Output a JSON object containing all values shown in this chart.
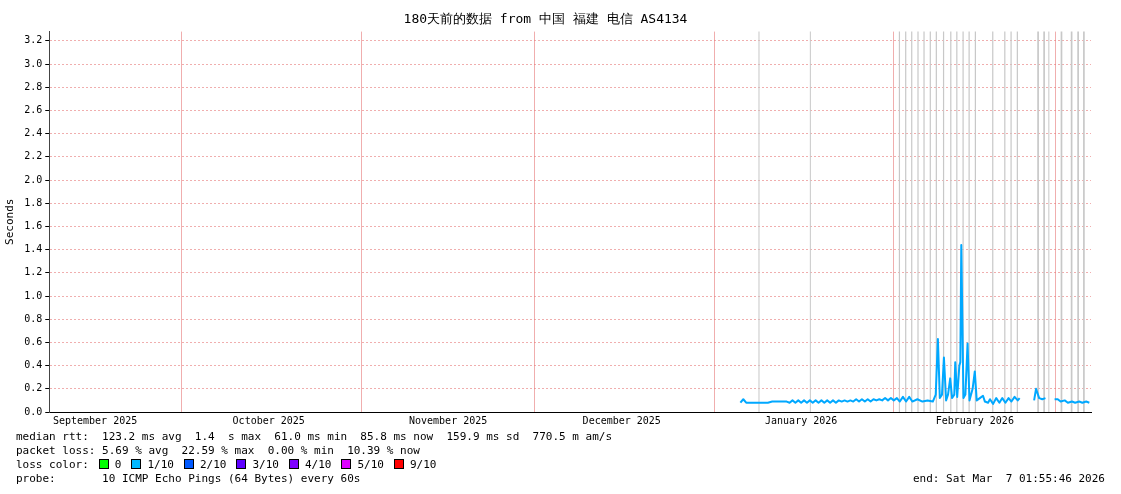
{
  "chart_data": {
    "type": "line",
    "title": "180天前的数据 from 中国 福建 电信 AS4134",
    "ylabel": "Seconds",
    "xlim": [
      "2025-09-08T01:55",
      "2026-03-07T01:55"
    ],
    "xticks": [
      {
        "value": "2025-09-16",
        "label": "September 2025"
      },
      {
        "value": "2025-10-01",
        "label": null
      },
      {
        "value": "2025-10-16",
        "label": "October 2025"
      },
      {
        "value": "2025-11-01",
        "label": null
      },
      {
        "value": "2025-11-16",
        "label": "November 2025"
      },
      {
        "value": "2025-12-01",
        "label": null
      },
      {
        "value": "2025-12-16",
        "label": "December 2025"
      },
      {
        "value": "2026-01-01",
        "label": null
      },
      {
        "value": "2026-01-16",
        "label": "January 2026"
      },
      {
        "value": "2026-02-01",
        "label": null
      },
      {
        "value": "2026-02-15",
        "label": "February 2026"
      },
      {
        "value": "2026-03-01",
        "label": null
      }
    ],
    "ylim": [
      0,
      3.28
    ],
    "yticks": [
      {
        "value": 0,
        "label": "0.0"
      },
      0.2,
      0.4,
      0.6,
      0.8,
      {
        "value": 1,
        "label": "1.0"
      },
      1.2,
      1.4,
      1.6,
      1.8,
      {
        "value": 2,
        "label": "2.0"
      },
      2.2,
      2.4,
      2.6,
      2.8,
      {
        "value": 3,
        "label": "3.0"
      },
      3.2
    ],
    "grid": true,
    "legend": false,
    "series": [
      {
        "color": "#00a8ff",
        "x": [
          "2026-01-05T12:00",
          "2026-01-06T00:00",
          "2026-01-06T12:00",
          "2026-01-07T06:00",
          "2026-01-08T00:00",
          "2026-01-08T18:00",
          "2026-01-09T12:00",
          "2026-01-10T06:00",
          "2026-01-11T00:00",
          "2026-01-12T00:00",
          "2026-01-13T12:00",
          "2026-01-14T00:00",
          "2026-01-14T12:00",
          "2026-01-15T00:00",
          "2026-01-15T12:00",
          "2026-01-16T00:00",
          "2026-01-16T12:00",
          "2026-01-17T00:00",
          "2026-01-17T12:00",
          "2026-01-18T00:00",
          "2026-01-18T12:00",
          "2026-01-19T00:00",
          "2026-01-19T12:00",
          "2026-01-20T00:00",
          "2026-01-20T12:00",
          "2026-01-21T00:00",
          "2026-01-21T12:00",
          "2026-01-22T00:00",
          "2026-01-22T12:00",
          "2026-01-23T00:00",
          "2026-01-23T12:00",
          "2026-01-24T00:00",
          "2026-01-24T12:00",
          "2026-01-25T00:00",
          "2026-01-25T12:00",
          "2026-01-26T00:00",
          "2026-01-26T12:00",
          "2026-01-27T00:00",
          "2026-01-27T12:00",
          "2026-01-28T00:00",
          "2026-01-28T12:00",
          "2026-01-29T00:00",
          "2026-01-29T12:00",
          "2026-01-30T00:00",
          "2026-01-30T12:00",
          "2026-01-31T00:00",
          "2026-01-31T12:00",
          "2026-02-01T00:00",
          "2026-02-01T13:00",
          "2026-02-02T01:00",
          "2026-02-02T14:00",
          "2026-02-03T03:00",
          "2026-02-03T16:00",
          "2026-02-04T05:00",
          "2026-02-05T02:00",
          "2026-02-05T23:00",
          "2026-02-06T20:00",
          "2026-02-07T18:00",
          "2026-02-08T06:00",
          "2026-02-08T15:00",
          "2026-02-08T23:00",
          "2026-02-09T08:00",
          "2026-02-09T16:00",
          "2026-02-10T01:00",
          "2026-02-10T09:00",
          "2026-02-10T18:00",
          "2026-02-11T02:00",
          "2026-02-11T11:00",
          "2026-02-11T15:00",
          "2026-02-11T23:00",
          "2026-02-12T08:00",
          "2026-02-12T12:00",
          "2026-02-12T16:00",
          "2026-02-13T01:00",
          "2026-02-13T09:00",
          "2026-02-13T18:00",
          "2026-02-14T02:00",
          "2026-02-14T15:00",
          "2026-02-15T00:00",
          "2026-02-15T08:00",
          "2026-02-15T21:00",
          "2026-02-16T10:00",
          "2026-02-16T18:00",
          "2026-02-17T07:00",
          "2026-02-17T15:00",
          "2026-02-18T04:00",
          "2026-02-18T17:00",
          "2026-02-19T06:00",
          "2026-02-19T18:00",
          "2026-02-20T07:00",
          "2026-02-20T20:00",
          "2026-02-21T08:00",
          "2026-02-21T21:00",
          "2026-02-22T10:00",
          "2026-02-22T18:00",
          "2026-02-23T12:00",
          "2026-02-25T06:00",
          "2026-02-25T14:00",
          "2026-02-26T03:00",
          "2026-02-26T16:00",
          "2026-02-27T05:00",
          "2026-02-28T00:00",
          "2026-02-28T19:00",
          "2026-03-01T08:00",
          "2026-03-01T20:00",
          "2026-03-02T13:00",
          "2026-03-03T02:00",
          "2026-03-03T19:00",
          "2026-03-04T08:00",
          "2026-03-05T01:00",
          "2026-03-05T14:00",
          "2026-03-06T06:00",
          "2026-03-06T19:00"
        ],
        "values": [
          0.08,
          0.11,
          0.08,
          0.08,
          0.08,
          0.08,
          0.08,
          0.08,
          0.09,
          0.09,
          0.09,
          0.08,
          0.1,
          0.08,
          0.1,
          0.08,
          0.1,
          0.08,
          0.1,
          0.08,
          0.1,
          0.08,
          0.1,
          0.08,
          0.1,
          0.08,
          0.1,
          0.08,
          0.1,
          0.09,
          0.1,
          0.09,
          0.1,
          0.09,
          0.11,
          0.09,
          0.11,
          0.09,
          0.11,
          0.09,
          0.11,
          0.1,
          0.11,
          0.1,
          0.12,
          0.1,
          0.12,
          0.1,
          0.12,
          0.09,
          0.13,
          0.09,
          0.13,
          0.09,
          0.11,
          0.09,
          0.1,
          0.09,
          0.15,
          0.63,
          0.12,
          0.15,
          0.47,
          0.1,
          0.15,
          0.29,
          0.12,
          0.15,
          0.43,
          0.13,
          0.4,
          0.43,
          1.44,
          0.12,
          0.15,
          0.59,
          0.1,
          0.2,
          0.35,
          0.1,
          0.12,
          0.14,
          0.09,
          0.08,
          0.11,
          0.07,
          0.12,
          0.08,
          0.12,
          0.08,
          0.12,
          0.09,
          0.13,
          0.1,
          0.12,
          null,
          0.1,
          0.2,
          0.12,
          0.11,
          0.12,
          null,
          0.11,
          0.11,
          0.09,
          0.1,
          0.08,
          0.09,
          0.08,
          0.09,
          0.08,
          0.09,
          0.08
        ]
      }
    ],
    "bands": [
      {
        "axis": "x",
        "from": "2026-01-08T15:00",
        "to": "2026-01-08T19:00",
        "color": "#c8c8c8"
      },
      {
        "axis": "x",
        "from": "2026-01-17T12:00",
        "to": "2026-01-17T16:00",
        "color": "#c8c8c8"
      },
      {
        "axis": "x",
        "from": "2026-02-01T21:00",
        "to": "2026-02-02T02:00",
        "color": "#c8c8c8"
      },
      {
        "axis": "x",
        "from": "2026-02-02T23:00",
        "to": "2026-02-03T04:00",
        "color": "#c8c8c8"
      },
      {
        "axis": "x",
        "from": "2026-02-04T00:00",
        "to": "2026-02-04T05:00",
        "color": "#c8c8c8"
      },
      {
        "axis": "x",
        "from": "2026-02-05T02:00",
        "to": "2026-02-05T07:00",
        "color": "#c8c8c8"
      },
      {
        "axis": "x",
        "from": "2026-02-06T03:00",
        "to": "2026-02-06T08:00",
        "color": "#c8c8c8"
      },
      {
        "axis": "x",
        "from": "2026-02-07T05:00",
        "to": "2026-02-07T10:00",
        "color": "#c8c8c8"
      },
      {
        "axis": "x",
        "from": "2026-02-08T06:00",
        "to": "2026-02-08T11:00",
        "color": "#c8c8c8"
      },
      {
        "axis": "x",
        "from": "2026-02-09T12:00",
        "to": "2026-02-09T17:00",
        "color": "#c8c8c8"
      },
      {
        "axis": "x",
        "from": "2026-02-10T18:00",
        "to": "2026-02-10T23:00",
        "color": "#c8c8c8"
      },
      {
        "axis": "x",
        "from": "2026-02-11T19:00",
        "to": "2026-02-12T00:00",
        "color": "#c8c8c8"
      },
      {
        "axis": "x",
        "from": "2026-02-12T21:00",
        "to": "2026-02-13T02:00",
        "color": "#c8c8c8"
      },
      {
        "axis": "x",
        "from": "2026-02-13T22:00",
        "to": "2026-02-14T03:00",
        "color": "#c8c8c8"
      },
      {
        "axis": "x",
        "from": "2026-02-15T00:00",
        "to": "2026-02-15T05:00",
        "color": "#c8c8c8"
      },
      {
        "axis": "x",
        "from": "2026-02-18T00:00",
        "to": "2026-02-18T05:00",
        "color": "#c8c8c8"
      },
      {
        "axis": "x",
        "from": "2026-02-20T02:00",
        "to": "2026-02-20T07:00",
        "color": "#c8c8c8"
      },
      {
        "axis": "x",
        "from": "2026-02-21T04:00",
        "to": "2026-02-21T09:00",
        "color": "#c8c8c8"
      },
      {
        "axis": "x",
        "from": "2026-02-22T06:00",
        "to": "2026-02-22T11:00",
        "color": "#c8c8c8"
      },
      {
        "axis": "x",
        "from": "2026-02-25T19:00",
        "to": "2026-02-26T02:00",
        "color": "#c8c8c8"
      },
      {
        "axis": "x",
        "from": "2026-02-26T20:00",
        "to": "2026-02-27T03:00",
        "color": "#c8c8c8"
      },
      {
        "axis": "x",
        "from": "2026-02-27T17:00",
        "to": "2026-02-27T21:00",
        "color": "#c8c8c8"
      },
      {
        "axis": "x",
        "from": "2026-03-01T20:00",
        "to": "2026-03-02T03:00",
        "color": "#c8c8c8"
      },
      {
        "axis": "x",
        "from": "2026-03-03T14:00",
        "to": "2026-03-03T21:00",
        "color": "#c8c8c8"
      },
      {
        "axis": "x",
        "from": "2026-03-04T17:00",
        "to": "2026-03-05T00:00",
        "color": "#c8c8c8"
      },
      {
        "axis": "x",
        "from": "2026-03-05T17:00",
        "to": "2026-03-06T00:00",
        "color": "#c8c8c8"
      }
    ],
    "annotations": [
      "median rtt:  123.2 ms avg  1.4  s max  61.0 ms min  85.8 ms now  159.9 ms sd  770.5 m am/s",
      "packet loss: 5.69 % avg  22.59 % max  0.00 % min  10.39 % now",
      "loss color:",
      "0",
      "1/10",
      "2/10",
      "3/10",
      "4/10",
      "5/10",
      "9/10",
      "probe:       10 ICMP Echo Pings (64 Bytes) every 60s",
      "end: Sat Mar  7 01:55:46 2026"
    ]
  }
}
